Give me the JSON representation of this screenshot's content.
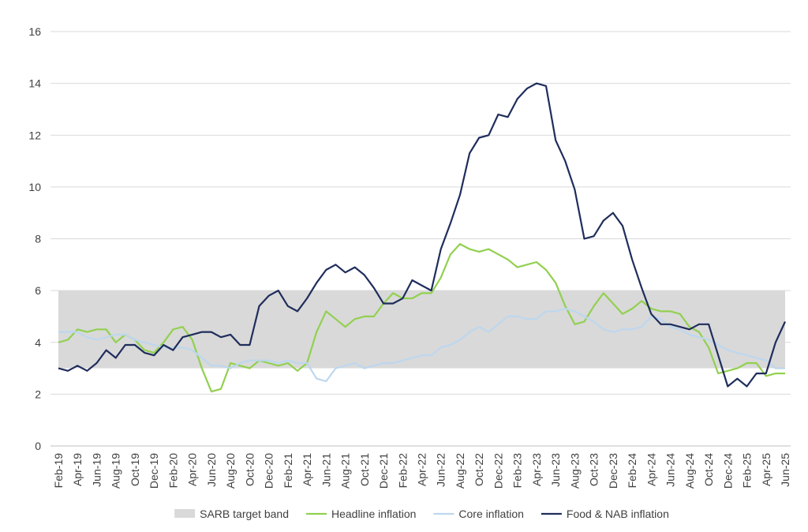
{
  "chart_data": {
    "type": "line",
    "categories": [
      "Feb-19",
      null,
      "Apr-19",
      null,
      "Jun-19",
      null,
      "Aug-19",
      null,
      "Oct-19",
      null,
      "Dec-19",
      null,
      "Feb-20",
      null,
      "Apr-20",
      null,
      "Jun-20",
      null,
      "Aug-20",
      null,
      "Oct-20",
      null,
      "Dec-20",
      null,
      "Feb-21",
      null,
      "Apr-21",
      null,
      "Jun-21",
      null,
      "Aug-21",
      null,
      "Oct-21",
      null,
      "Dec-21",
      null,
      "Feb-22",
      null,
      "Apr-22",
      null,
      "Jun-22",
      null,
      "Aug-22",
      null,
      "Oct-22",
      null,
      "Dec-22",
      null,
      "Feb-23",
      null,
      "Apr-23",
      null,
      "Jun-23",
      null,
      "Aug-23",
      null,
      "Oct-23",
      null,
      "Dec-23",
      null,
      "Feb-24",
      null,
      "Apr-24",
      null,
      "Jun-24",
      null,
      "Aug-24",
      null,
      "Oct-24",
      null,
      "Dec-24",
      null,
      "Feb-25",
      null,
      "Apr-25",
      null,
      "Jun-25"
    ],
    "band": {
      "name": "SARB target band",
      "color": "#d9d9d9",
      "range": [
        3,
        6
      ]
    },
    "series": [
      {
        "name": "Headline inflation",
        "color": "#92d050",
        "values": [
          4.0,
          4.1,
          4.5,
          4.4,
          4.5,
          4.5,
          4.0,
          4.3,
          4.1,
          3.7,
          3.6,
          4.0,
          4.5,
          4.6,
          4.1,
          3.0,
          2.1,
          2.2,
          3.2,
          3.1,
          3.0,
          3.3,
          3.2,
          3.1,
          3.2,
          2.9,
          3.2,
          4.4,
          5.2,
          4.9,
          4.6,
          4.9,
          5.0,
          5.0,
          5.5,
          5.9,
          5.7,
          5.7,
          5.9,
          5.9,
          6.5,
          7.4,
          7.8,
          7.6,
          7.5,
          7.6,
          7.4,
          7.2,
          6.9,
          7.0,
          7.1,
          6.8,
          6.3,
          5.4,
          4.7,
          4.8,
          5.4,
          5.9,
          5.5,
          5.1,
          5.3,
          5.6,
          5.3,
          5.2,
          5.2,
          5.1,
          4.6,
          4.4,
          3.8,
          2.8,
          2.9,
          3.0,
          3.2,
          3.2,
          2.7,
          2.8,
          2.8
        ]
      },
      {
        "name": "Core inflation",
        "color": "#bdd7ee",
        "values": [
          4.4,
          4.4,
          4.4,
          4.2,
          4.1,
          4.2,
          4.3,
          4.3,
          4.1,
          4.0,
          3.9,
          3.8,
          3.8,
          3.8,
          3.7,
          3.4,
          3.1,
          3.1,
          3.0,
          3.2,
          3.3,
          3.3,
          3.3,
          3.2,
          3.3,
          3.2,
          3.2,
          2.6,
          2.5,
          3.0,
          3.1,
          3.2,
          3.0,
          3.1,
          3.2,
          3.2,
          3.3,
          3.4,
          3.5,
          3.5,
          3.8,
          3.9,
          4.1,
          4.4,
          4.6,
          4.4,
          4.7,
          5.0,
          5.0,
          4.9,
          4.9,
          5.2,
          5.2,
          5.3,
          5.2,
          5.0,
          4.8,
          4.5,
          4.4,
          4.5,
          4.5,
          4.6,
          5.0,
          4.9,
          4.6,
          4.5,
          4.3,
          4.2,
          4.1,
          3.9,
          3.7,
          3.6,
          3.5,
          3.4,
          3.3,
          3.0,
          3.0
        ]
      },
      {
        "name": "Food & NAB inflation",
        "color": "#1f2d5c",
        "values": [
          3.0,
          2.9,
          3.1,
          2.9,
          3.2,
          3.7,
          3.4,
          3.9,
          3.9,
          3.6,
          3.5,
          3.9,
          3.7,
          4.2,
          4.3,
          4.4,
          4.4,
          4.2,
          4.3,
          3.9,
          3.9,
          5.4,
          5.8,
          6.0,
          5.4,
          5.2,
          5.7,
          6.3,
          6.8,
          7.0,
          6.7,
          6.9,
          6.6,
          6.1,
          5.5,
          5.5,
          5.7,
          6.4,
          6.2,
          6.0,
          7.6,
          8.6,
          9.7,
          11.3,
          11.9,
          12.0,
          12.8,
          12.7,
          13.4,
          13.8,
          14.0,
          13.9,
          11.8,
          11.0,
          9.9,
          8.0,
          8.1,
          8.7,
          9.0,
          8.5,
          7.2,
          6.1,
          5.1,
          4.7,
          4.7,
          4.6,
          4.5,
          4.7,
          4.7,
          3.5,
          2.3,
          2.6,
          2.3,
          2.8,
          2.8,
          4.0,
          4.8
        ]
      }
    ],
    "ylim": [
      0,
      16
    ],
    "yticks": [
      0,
      2,
      4,
      6,
      8,
      10,
      12,
      14,
      16
    ],
    "grid": true
  }
}
